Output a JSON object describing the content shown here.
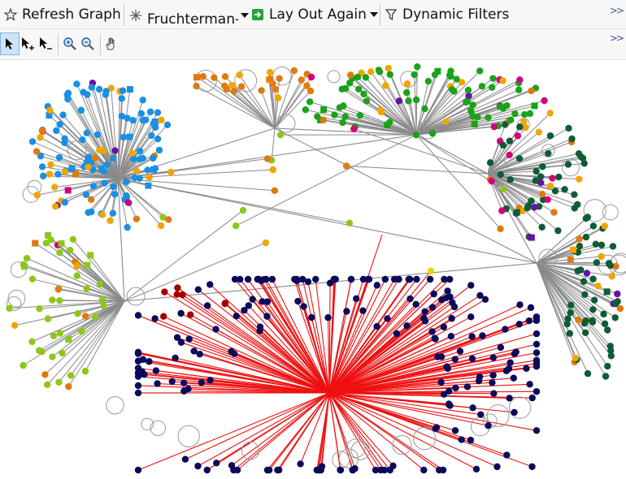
{
  "toolbar": {
    "refresh_label": "Refresh Graph",
    "layout_select_value": "Fruchterman-",
    "layout_again_label": "Lay Out Again",
    "dynamic_filters_label": "Dynamic Filters",
    "more_icon": "chevron-double-right-icon"
  },
  "tools": [
    {
      "name": "select-tool",
      "icon": "arrow-cursor-icon",
      "active": true
    },
    {
      "name": "add-select-tool",
      "icon": "arrow-plus-cursor-icon",
      "active": false
    },
    {
      "name": "remove-select-tool",
      "icon": "arrow-minus-cursor-icon",
      "active": false
    },
    {
      "name": "zoom-in-tool",
      "icon": "zoom-in-icon",
      "active": false
    },
    {
      "name": "zoom-out-tool",
      "icon": "zoom-out-icon",
      "active": false
    },
    {
      "name": "pan-tool",
      "icon": "hand-icon",
      "active": false
    }
  ],
  "graph": {
    "layout": "fruchterman-reingold",
    "edge_colors": {
      "default": "#8a8a8a",
      "highlight": "#ee1111"
    },
    "vertex_colors": [
      "#1a8fe3",
      "#1aa21a",
      "#0e5c36",
      "#f0a500",
      "#e07a10",
      "#d4007a",
      "#6a0dad",
      "#8fc61a",
      "#a00000",
      "#0a0a5a",
      "#e8d800",
      "#136b86"
    ]
  }
}
